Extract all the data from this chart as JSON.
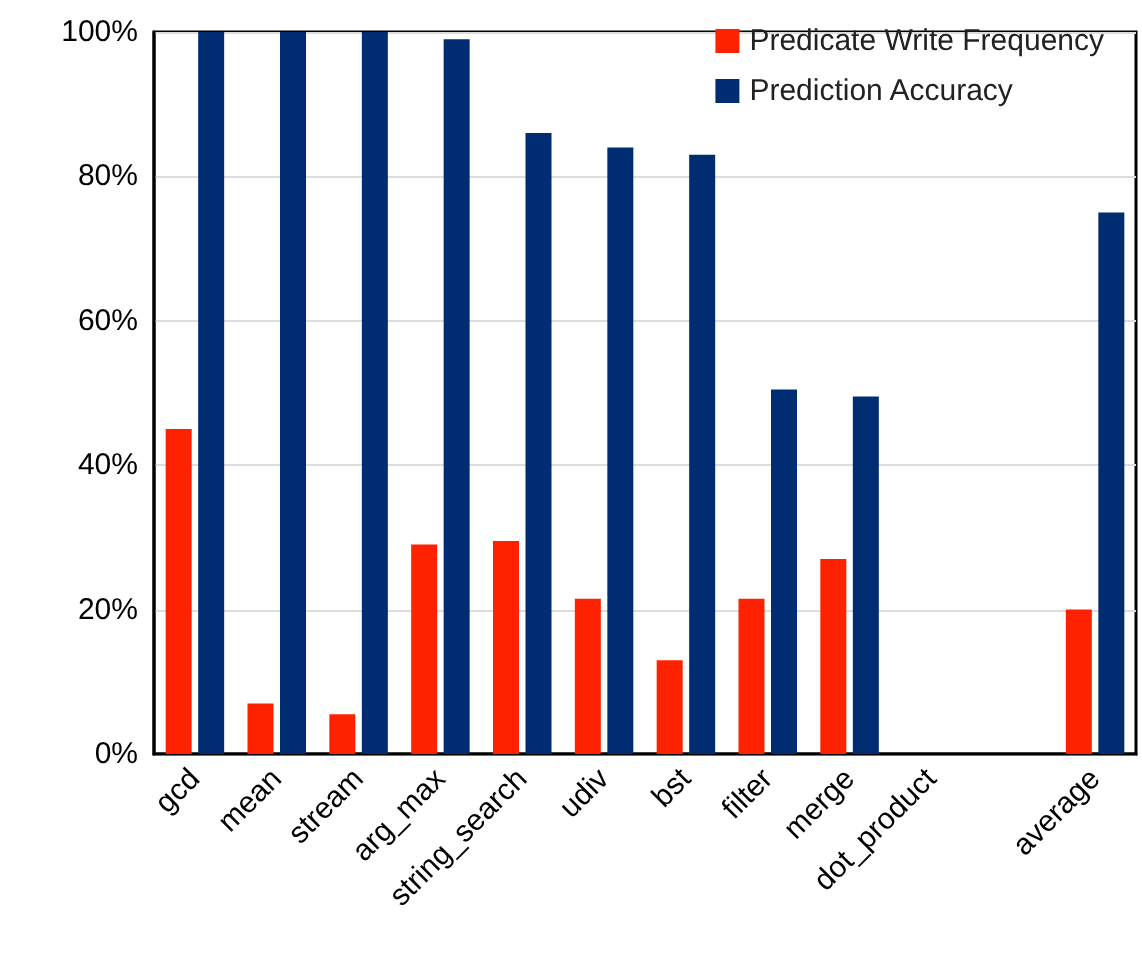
{
  "chart_data": {
    "type": "bar",
    "categories": [
      "gcd",
      "mean",
      "stream",
      "arg_max",
      "string_search",
      "udiv",
      "bst",
      "filter",
      "merge",
      "dot_product",
      null,
      "average"
    ],
    "series": [
      {
        "name": "Predicate Write Frequency",
        "color": "#ff2200",
        "values": [
          45,
          7,
          5.5,
          29,
          29.5,
          21.5,
          13,
          21.5,
          27,
          null,
          null,
          20
        ]
      },
      {
        "name": "Prediction Accuracy",
        "color": "#002d72",
        "values": [
          100,
          100,
          100,
          99,
          86,
          84,
          83,
          50.5,
          49.5,
          null,
          null,
          75
        ]
      }
    ],
    "ylim": [
      0,
      100
    ],
    "yticks": [
      {
        "value": 0,
        "label": "0%"
      },
      {
        "value": 20,
        "label": "20%"
      },
      {
        "value": 40,
        "label": "40%"
      },
      {
        "value": 60,
        "label": "60%"
      },
      {
        "value": 80,
        "label": "80%"
      },
      {
        "value": 100,
        "label": "100%"
      }
    ],
    "grid": "y",
    "legend": "top right"
  }
}
